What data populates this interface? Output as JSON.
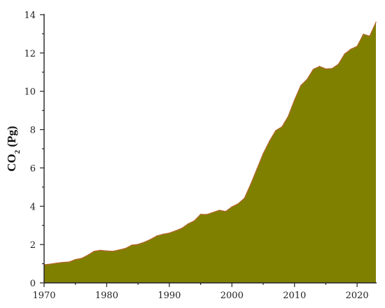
{
  "chart_data": {
    "type": "area",
    "xlabel": "",
    "ylabel": "CO",
    "ylabel_subscript": "2",
    "ylabel_suffix": " (Pg)",
    "xlim": [
      1970,
      2023
    ],
    "ylim": [
      0,
      14
    ],
    "xticks": [
      1970,
      1980,
      1990,
      2000,
      2010,
      2020
    ],
    "yticks": [
      0,
      2,
      4,
      6,
      8,
      10,
      12,
      14
    ],
    "grid": false,
    "legend": "none",
    "fill_color": "#808000",
    "line_color": "#b5652e",
    "x": [
      1970,
      1971,
      1972,
      1973,
      1974,
      1975,
      1976,
      1977,
      1978,
      1979,
      1980,
      1981,
      1982,
      1983,
      1984,
      1985,
      1986,
      1987,
      1988,
      1989,
      1990,
      1991,
      1992,
      1993,
      1994,
      1995,
      1996,
      1997,
      1998,
      1999,
      2000,
      2001,
      2002,
      2003,
      2004,
      2005,
      2006,
      2007,
      2008,
      2009,
      2010,
      2011,
      2012,
      2013,
      2014,
      2015,
      2016,
      2017,
      2018,
      2019,
      2020,
      2021,
      2022,
      2023
    ],
    "y": [
      0.95,
      0.98,
      1.03,
      1.07,
      1.09,
      1.22,
      1.28,
      1.45,
      1.65,
      1.7,
      1.67,
      1.65,
      1.72,
      1.8,
      1.97,
      2.01,
      2.12,
      2.27,
      2.45,
      2.54,
      2.6,
      2.72,
      2.85,
      3.08,
      3.24,
      3.58,
      3.57,
      3.68,
      3.79,
      3.73,
      3.97,
      4.13,
      4.42,
      5.15,
      5.95,
      6.75,
      7.4,
      7.95,
      8.15,
      8.7,
      9.55,
      10.3,
      10.62,
      11.15,
      11.3,
      11.17,
      11.19,
      11.41,
      11.95,
      12.2,
      12.35,
      12.98,
      12.88,
      13.6
    ]
  }
}
